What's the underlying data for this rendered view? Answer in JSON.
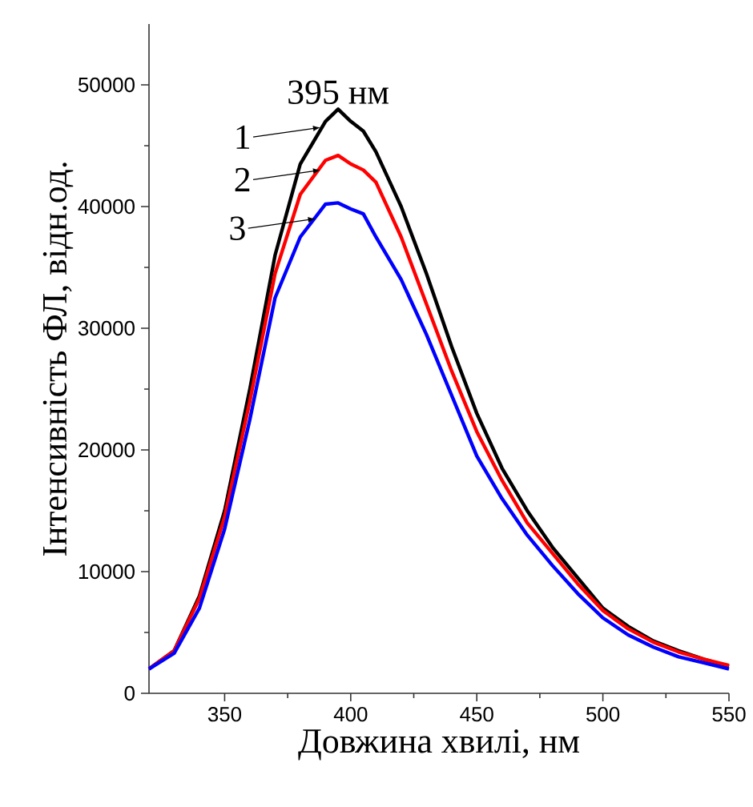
{
  "chart_data": {
    "type": "line",
    "xlabel": "Довжина хвилі, нм",
    "ylabel": "Інтенсивність ФЛ, відн.од.",
    "x": [
      320,
      330,
      340,
      350,
      360,
      370,
      380,
      390,
      395,
      400,
      405,
      410,
      420,
      430,
      440,
      450,
      460,
      470,
      480,
      490,
      500,
      510,
      520,
      530,
      540,
      550
    ],
    "series": [
      {
        "color": "#000000",
        "values": [
          2000,
          3500,
          8000,
          15000,
          25000,
          36000,
          43500,
          47000,
          48000,
          47000,
          46200,
          44500,
          40000,
          34500,
          28500,
          23000,
          18500,
          15000,
          12000,
          9500,
          7000,
          5500,
          4300,
          3500,
          2800,
          2200
        ]
      },
      {
        "color": "#ff0000",
        "values": [
          2000,
          3500,
          7800,
          14500,
          24000,
          34500,
          41000,
          43800,
          44200,
          43500,
          43000,
          42000,
          37500,
          32000,
          26500,
          21500,
          17500,
          14000,
          11500,
          9000,
          6800,
          5300,
          4200,
          3400,
          2800,
          2300
        ]
      },
      {
        "color": "#0000ff",
        "values": [
          2000,
          3300,
          7000,
          13500,
          22500,
          32500,
          37500,
          40200,
          40300,
          39800,
          39400,
          37500,
          34000,
          29500,
          24500,
          19500,
          16000,
          13000,
          10500,
          8200,
          6200,
          4800,
          3800,
          3000,
          2500,
          2000
        ]
      }
    ],
    "annotations": [
      {
        "text": "395 нм",
        "x": 395,
        "y": 48000
      },
      {
        "text": "1",
        "x": 388,
        "y": 46500
      },
      {
        "text": "2",
        "x": 388,
        "y": 43000
      },
      {
        "text": "3",
        "x": 386,
        "y": 39000
      }
    ],
    "xlim": [
      320,
      550
    ],
    "ylim": [
      0,
      55000
    ],
    "xticks": [
      350,
      400,
      450,
      500,
      550
    ],
    "yticks": [
      0,
      10000,
      20000,
      30000,
      40000,
      50000
    ],
    "marker": "none",
    "line_style": "solid"
  }
}
